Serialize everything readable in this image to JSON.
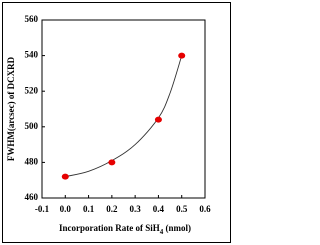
{
  "chart_data": {
    "type": "scatter",
    "xlabel": [
      "Incorporation Rate of  SiH",
      "4",
      " (nmol)"
    ],
    "ylabel": "FWHM(arcsec) of DCXRD",
    "xlim": [
      -0.1,
      0.6
    ],
    "xticks": [
      -0.1,
      {
        "value": 0,
        "label": "0.0"
      },
      0.1,
      0.2,
      0.3,
      0.4,
      0.5,
      0.6
    ],
    "ylim": [
      460,
      560
    ],
    "yticks": [
      460,
      480,
      500,
      520,
      540,
      560
    ],
    "series": [
      {
        "x": [
          0,
          0.2,
          0.4,
          0.5
        ],
        "values": [
          472,
          480,
          504,
          540
        ],
        "color": "#e60000"
      }
    ],
    "fit": {
      "x": [
        0,
        0.1,
        0.2,
        0.3,
        0.4,
        0.45,
        0.5
      ],
      "values": [
        472,
        475,
        481,
        490,
        505,
        519,
        540
      ],
      "color": "#333333"
    }
  }
}
